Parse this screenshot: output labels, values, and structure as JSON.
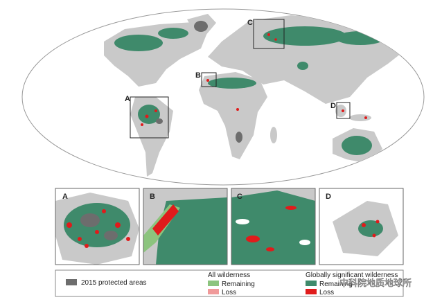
{
  "map": {
    "box_labels": [
      "A",
      "B",
      "C",
      "D"
    ]
  },
  "insets": [
    {
      "label": "A"
    },
    {
      "label": "B"
    },
    {
      "label": "C"
    },
    {
      "label": "D"
    }
  ],
  "legend": {
    "protected": "2015 protected areas",
    "all_wilderness": {
      "title": "All wilderness",
      "remaining": "Remaining",
      "loss": "Loss"
    },
    "global_wilderness": {
      "title": "Globally significant wilderness",
      "remaining": "Remaining",
      "loss": "Loss"
    }
  },
  "watermark": "中科院地质地球所"
}
